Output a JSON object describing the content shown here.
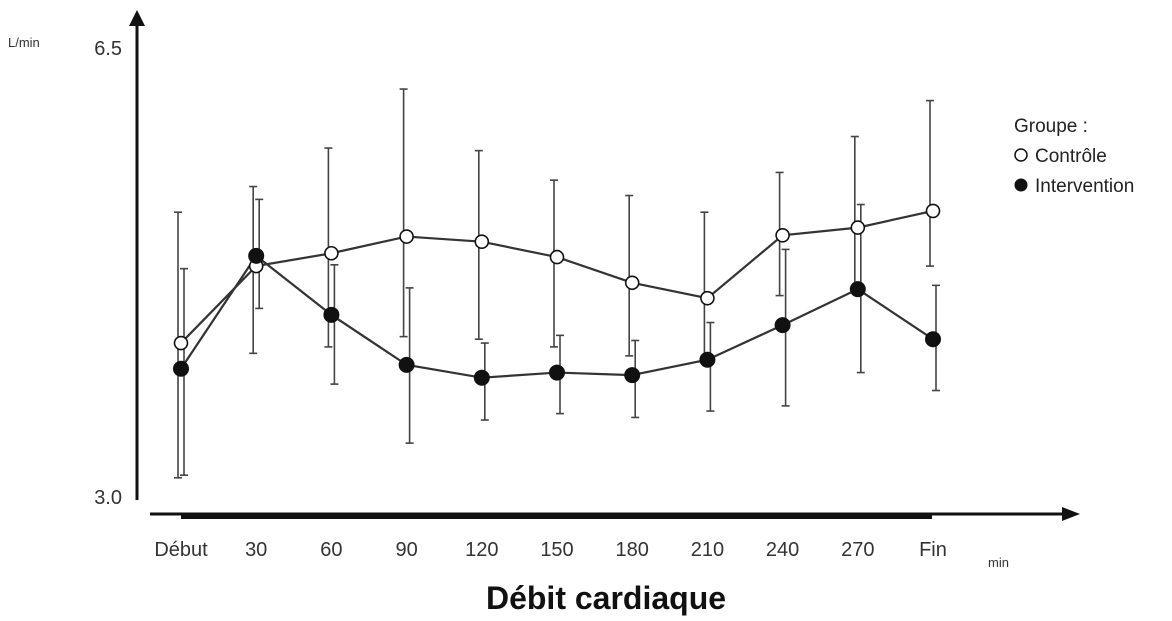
{
  "chart_data": {
    "type": "line",
    "title": "Débit cardiaque",
    "xlabel": "min",
    "ylabel": "L/min",
    "categories": [
      "Début",
      "30",
      "60",
      "90",
      "120",
      "150",
      "180",
      "210",
      "240",
      "270",
      "Fin"
    ],
    "ylim": [
      3.0,
      6.5
    ],
    "yticks": [
      "3.0",
      "6.5"
    ],
    "grid": false,
    "legend": {
      "title": "Groupe :",
      "position": "right"
    },
    "series": [
      {
        "name": "Contrôle",
        "marker": "open-circle",
        "values": [
          4.2,
          4.8,
          4.9,
          5.03,
          4.99,
          4.87,
          4.67,
          4.55,
          5.04,
          5.1,
          5.23
        ],
        "err_low": [
          3.15,
          4.12,
          4.17,
          4.25,
          4.23,
          4.17,
          4.1,
          4.08,
          4.57,
          4.63,
          4.8
        ],
        "err_high": [
          5.22,
          5.42,
          5.72,
          6.18,
          5.7,
          5.47,
          5.35,
          5.22,
          5.53,
          5.81,
          6.09
        ]
      },
      {
        "name": "Intervention",
        "marker": "filled-circle",
        "values": [
          4.0,
          4.88,
          4.42,
          4.03,
          3.93,
          3.97,
          3.95,
          4.07,
          4.34,
          4.62,
          4.23
        ],
        "err_low": [
          3.17,
          4.47,
          3.88,
          3.42,
          3.6,
          3.65,
          3.62,
          3.67,
          3.71,
          3.97,
          3.83
        ],
        "err_high": [
          4.78,
          5.32,
          4.81,
          4.63,
          4.2,
          4.26,
          4.22,
          4.36,
          4.93,
          5.28,
          4.65
        ]
      }
    ]
  }
}
